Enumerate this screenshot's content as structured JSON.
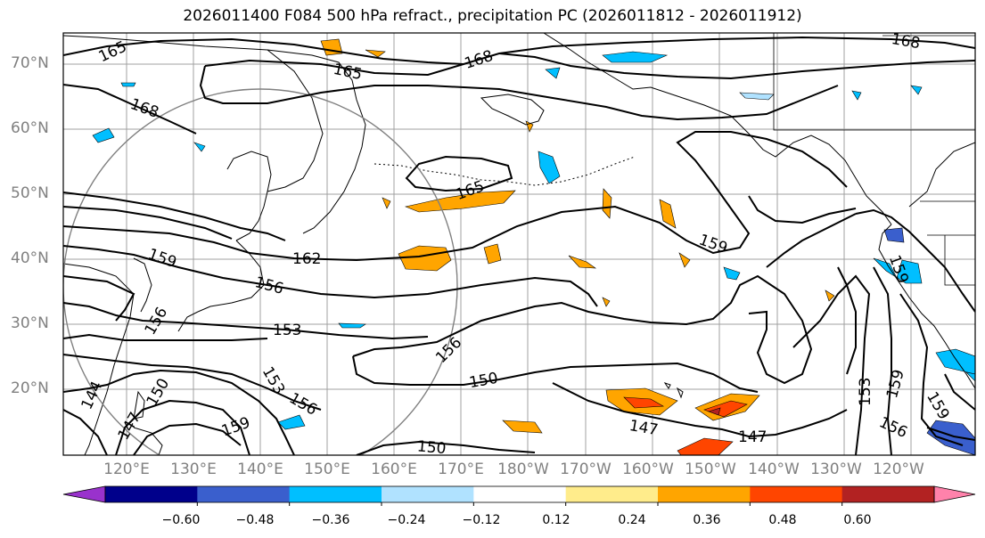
{
  "title": "2026011400 F084 500 hPa refract., precipitation PC (2026011812 - 2026011912)",
  "lat_labels": [
    "70°N",
    "60°N",
    "50°N",
    "40°N",
    "30°N",
    "20°N"
  ],
  "lon_labels": [
    "120°E",
    "130°E",
    "140°E",
    "150°E",
    "160°E",
    "170°E",
    "180°W",
    "170°W",
    "160°W",
    "150°W",
    "140°W",
    "130°W",
    "120°W"
  ],
  "contour_labels": [
    "165",
    "168",
    "165",
    "168",
    "168",
    "165",
    "159",
    "162",
    "156",
    "156",
    "153",
    "156",
    "153",
    "150",
    "156",
    "150",
    "147",
    "147",
    "159",
    "159",
    "153",
    "159",
    "159",
    "156",
    "144",
    "150",
    "147",
    "159"
  ],
  "colorbar": {
    "ticks": [
      "−0.60",
      "−0.48",
      "−0.36",
      "−0.24",
      "−0.12",
      "0.12",
      "0.24",
      "0.36",
      "0.48",
      "0.60"
    ],
    "colors": [
      "#9932cc",
      "#00008b",
      "#3a5fcd",
      "#00bfff",
      "#b0e2ff",
      "#ffffff",
      "#ffec8b",
      "#ffa500",
      "#ff4500",
      "#b22222",
      "#ff82ab"
    ]
  },
  "colors": {
    "land_outline": "#000000",
    "grid": "#a0a0a0",
    "circle": "#808080",
    "axis_labels": "#808080"
  }
}
